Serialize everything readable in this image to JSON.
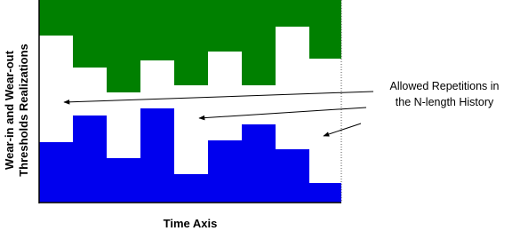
{
  "y_axis_label": {
    "lines": [
      "Wear-in and Wear-out",
      "Thresholds Realizations"
    ]
  },
  "x_axis_label": "Time Axis",
  "annotation": {
    "lines": [
      "Allowed Repetitions in",
      "the N-length History"
    ]
  }
}
